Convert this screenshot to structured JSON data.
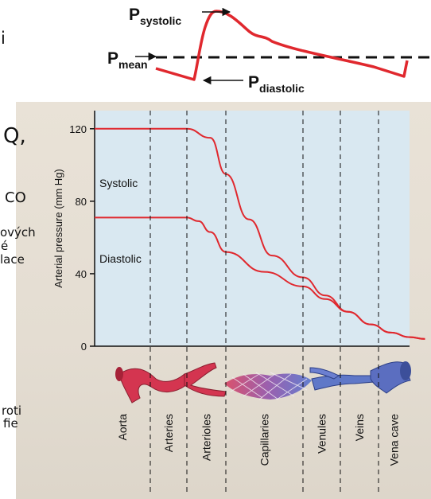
{
  "top_diagram": {
    "p_systolic": {
      "letter": "P",
      "sub": "systolic"
    },
    "p_mean": {
      "letter": "P",
      "sub": "mean"
    },
    "p_diastolic": {
      "letter": "P",
      "sub": "diastolic"
    }
  },
  "slide_fragments": [
    "i",
    "Q,",
    "CO",
    "ových",
    "é",
    "lace",
    "roti",
    "fie"
  ],
  "chart_data": {
    "type": "line",
    "ylabel": "Arterial pressure (mm Hg)",
    "ylim": [
      0,
      130
    ],
    "yticks": [
      0,
      40,
      80,
      120
    ],
    "grid": false,
    "segments": [
      "Aorta",
      "Arteries",
      "Arterioles",
      "Capillaries",
      "Venules",
      "Veins",
      "Vena cave"
    ],
    "series": [
      {
        "name": "Systolic",
        "color": "#e0282e",
        "points": [
          [
            0,
            120
          ],
          [
            2.0,
            120
          ],
          [
            2.6,
            115
          ],
          [
            3.0,
            95
          ],
          [
            3.3,
            70
          ],
          [
            3.6,
            50
          ],
          [
            4.0,
            38
          ],
          [
            4.6,
            28
          ],
          [
            5.2,
            19
          ],
          [
            5.8,
            12
          ],
          [
            6.4,
            7.5
          ],
          [
            7.0,
            5
          ],
          [
            7.5,
            4
          ]
        ]
      },
      {
        "name": "Diastolic",
        "color": "#e0282e",
        "points": [
          [
            0,
            71
          ],
          [
            2.0,
            71
          ],
          [
            2.3,
            69
          ],
          [
            2.6,
            63
          ],
          [
            3.0,
            52
          ],
          [
            3.5,
            41
          ],
          [
            4.0,
            33
          ],
          [
            4.6,
            26
          ],
          [
            5.2,
            19
          ],
          [
            5.8,
            12
          ],
          [
            6.4,
            7.5
          ],
          [
            7.0,
            5
          ],
          [
            7.5,
            4
          ]
        ]
      }
    ]
  }
}
